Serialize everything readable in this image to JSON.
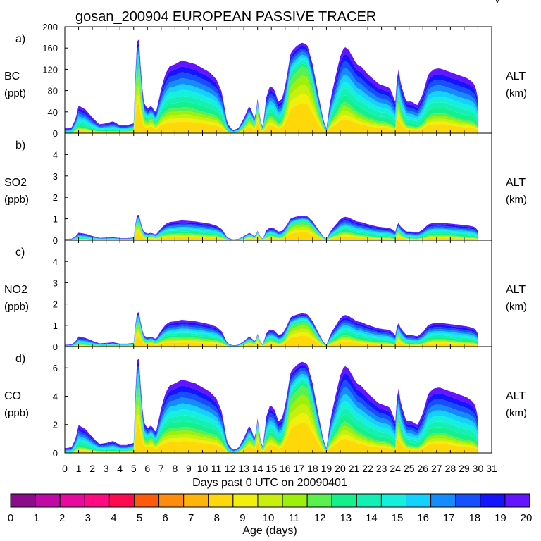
{
  "chart_data": {
    "type": "area",
    "title": "gosan_200904 EUROPEAN PASSIVE TRACER",
    "corner_mark": "v",
    "xlabel": "Days past 0 UTC on 20090401",
    "xlim": [
      0,
      31
    ],
    "x_ticks": [
      "0",
      "1",
      "2",
      "3",
      "4",
      "5",
      "6",
      "7",
      "8",
      "9",
      "10",
      "11",
      "12",
      "13",
      "14",
      "15",
      "16",
      "17",
      "18",
      "19",
      "20",
      "21",
      "22",
      "23",
      "24",
      "25",
      "26",
      "27",
      "28",
      "29",
      "30",
      "31"
    ],
    "right_label": "ALT",
    "right_unit": "(km)",
    "colorbar": {
      "label": "Age (days)",
      "range": [
        0,
        20
      ],
      "ticks": [
        "0",
        "1",
        "2",
        "3",
        "4",
        "5",
        "6",
        "7",
        "8",
        "9",
        "10",
        "11",
        "12",
        "13",
        "14",
        "15",
        "16",
        "17",
        "18",
        "19",
        "20"
      ],
      "colors": [
        "#8c0a8c",
        "#c00aa8",
        "#e80aa0",
        "#ff0a80",
        "#ff0a50",
        "#ff5a0a",
        "#ff8c0a",
        "#ffb40a",
        "#ffd80a",
        "#f0f00a",
        "#c8f00a",
        "#9cf00a",
        "#5af050",
        "#14f08c",
        "#14f0b4",
        "#14f0dc",
        "#14d2ff",
        "#148cff",
        "#1450ff",
        "#1414ff",
        "#6414ff"
      ]
    },
    "shape": {
      "x": [
        0,
        0.2,
        0.5,
        0.8,
        1.0,
        1.5,
        2.0,
        2.5,
        3.0,
        3.5,
        4.0,
        4.5,
        5.0,
        5.2,
        5.35,
        5.5,
        5.7,
        6.0,
        6.3,
        6.6,
        7.0,
        7.3,
        7.6,
        8.0,
        8.5,
        9.0,
        9.5,
        10.0,
        10.5,
        11.0,
        11.4,
        11.8,
        12.2,
        12.6,
        13.0,
        13.4,
        13.6,
        13.8,
        14.0,
        14.2,
        14.4,
        14.6,
        14.9,
        15.2,
        15.5,
        15.8,
        16.1,
        16.4,
        16.8,
        17.2,
        17.6,
        18.0,
        18.4,
        18.8,
        19.0,
        19.3,
        19.7,
        20.0,
        20.3,
        20.6,
        21.0,
        21.2,
        21.5,
        22.0,
        22.4,
        22.8,
        23.2,
        23.6,
        24.0,
        24.2,
        24.4,
        24.8,
        25.2,
        25.6,
        26.0,
        26.4,
        26.8,
        27.2,
        27.6,
        28.0,
        28.4,
        28.8,
        29.2,
        29.6,
        29.8,
        29.95,
        30.0
      ],
      "total": [
        0.05,
        0.05,
        0.06,
        0.15,
        0.28,
        0.24,
        0.16,
        0.09,
        0.1,
        0.12,
        0.08,
        0.08,
        0.1,
        0.9,
        1.0,
        0.7,
        0.32,
        0.25,
        0.28,
        0.2,
        0.45,
        0.6,
        0.68,
        0.7,
        0.74,
        0.72,
        0.7,
        0.66,
        0.62,
        0.55,
        0.42,
        0.1,
        0.03,
        0.05,
        0.15,
        0.28,
        0.22,
        0.12,
        0.35,
        0.12,
        0.06,
        0.35,
        0.48,
        0.45,
        0.32,
        0.35,
        0.55,
        0.82,
        0.88,
        0.92,
        0.9,
        0.7,
        0.4,
        0.12,
        0.05,
        0.35,
        0.6,
        0.78,
        0.88,
        0.85,
        0.75,
        0.7,
        0.68,
        0.6,
        0.55,
        0.5,
        0.48,
        0.46,
        0.32,
        0.7,
        0.5,
        0.32,
        0.32,
        0.28,
        0.4,
        0.6,
        0.65,
        0.66,
        0.64,
        0.62,
        0.6,
        0.58,
        0.56,
        0.52,
        0.48,
        0.4,
        0.35
      ],
      "young": [
        0.0,
        0.0,
        0.0,
        0.04,
        0.06,
        0.05,
        0.03,
        0.02,
        0.02,
        0.02,
        0.02,
        0.02,
        0.03,
        0.6,
        0.7,
        0.45,
        0.15,
        0.12,
        0.16,
        0.08,
        0.18,
        0.22,
        0.25,
        0.25,
        0.26,
        0.26,
        0.24,
        0.22,
        0.2,
        0.18,
        0.12,
        0.02,
        0.0,
        0.01,
        0.06,
        0.15,
        0.12,
        0.05,
        0.26,
        0.08,
        0.02,
        0.12,
        0.18,
        0.16,
        0.1,
        0.12,
        0.3,
        0.55,
        0.62,
        0.68,
        0.66,
        0.45,
        0.22,
        0.05,
        0.01,
        0.12,
        0.2,
        0.28,
        0.32,
        0.3,
        0.25,
        0.22,
        0.2,
        0.16,
        0.14,
        0.12,
        0.12,
        0.1,
        0.06,
        0.4,
        0.2,
        0.08,
        0.07,
        0.06,
        0.1,
        0.18,
        0.2,
        0.2,
        0.2,
        0.18,
        0.16,
        0.14,
        0.13,
        0.12,
        0.1,
        0.08,
        0.06
      ]
    },
    "panels": [
      {
        "letter": "a)",
        "name": "BC",
        "unit": "(ppt)",
        "ylim": [
          0,
          200
        ],
        "yticks": [
          "0",
          "40",
          "80",
          "120",
          "160",
          "200"
        ],
        "peak": 185
      },
      {
        "letter": "b)",
        "name": "SO2",
        "unit": "(ppb)",
        "ylim": [
          0,
          5
        ],
        "yticks": [
          "0",
          "1",
          "2",
          "3",
          "4"
        ],
        "peak": 1.25
      },
      {
        "letter": "c)",
        "name": "NO2",
        "unit": "(ppb)",
        "ylim": [
          0,
          5
        ],
        "yticks": [
          "0",
          "1",
          "2",
          "3",
          "4"
        ],
        "peak": 1.7
      },
      {
        "letter": "d)",
        "name": "CO",
        "unit": "(ppb)",
        "ylim": [
          0,
          7.5
        ],
        "yticks": [
          "0",
          "2",
          "4",
          "6"
        ],
        "peak": 7.0
      }
    ]
  }
}
